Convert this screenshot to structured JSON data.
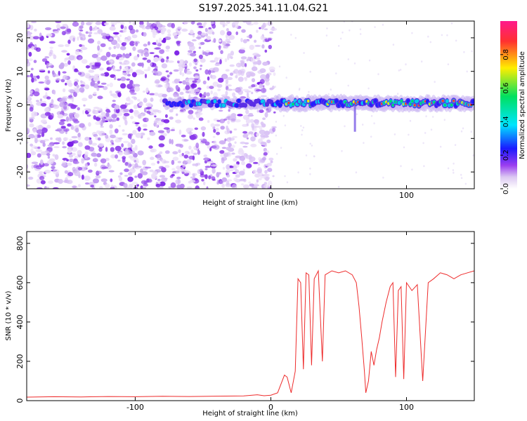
{
  "figure_title": "S197.2025.341.11.04.G21",
  "chart_data": [
    {
      "type": "heatmap",
      "title": "",
      "xlabel": "Height of straight line (km)",
      "ylabel": "Frequency (Hz)",
      "xlim": [
        -180,
        150
      ],
      "ylim": [
        -25,
        25
      ],
      "xticks": [
        -100,
        0,
        100
      ],
      "yticks": [
        -20,
        -10,
        0,
        10,
        20
      ],
      "colorbar": {
        "label": "Normalized spectral amplitude",
        "range": [
          0,
          1
        ],
        "ticks": [
          0.0,
          0.2,
          0.4,
          0.6,
          0.8
        ],
        "colors": [
          "#ffffff",
          "#dcc8f2",
          "#9a3df0",
          "#1a1aff",
          "#00e5ff",
          "#00e060",
          "#ffee00",
          "#ff3030",
          "#ff1a8c"
        ]
      },
      "features": {
        "noise_region_x": [
          -180,
          3
        ],
        "signal_band_start_x": -78,
        "signal_band_freq_hz": 0.5,
        "strong_signal_start_x": 3
      }
    },
    {
      "type": "line",
      "title": "",
      "xlabel": "Height of straight line (km)",
      "ylabel": "SNR (10 * v/v)",
      "xlim": [
        -180,
        150
      ],
      "ylim": [
        0,
        860
      ],
      "xticks": [
        -100,
        0,
        100
      ],
      "yticks": [
        0,
        200,
        400,
        600,
        800
      ],
      "color": "#ee2b2b",
      "series": [
        {
          "x": [
            -180,
            -160,
            -140,
            -120,
            -100,
            -80,
            -60,
            -40,
            -20,
            -10,
            -5,
            0,
            5,
            10,
            12,
            15,
            18,
            20,
            22,
            24,
            26,
            28,
            30,
            32,
            35,
            38,
            40,
            45,
            50,
            55,
            60,
            63,
            65,
            67,
            69,
            70,
            72,
            74,
            76,
            78,
            80,
            82,
            85,
            88,
            90,
            92,
            94,
            96,
            98,
            100,
            104,
            108,
            112,
            116,
            120,
            125,
            130,
            135,
            140,
            145,
            150
          ],
          "y": [
            18,
            20,
            19,
            21,
            20,
            22,
            21,
            23,
            24,
            30,
            25,
            28,
            40,
            130,
            120,
            40,
            150,
            620,
            600,
            160,
            650,
            640,
            180,
            620,
            660,
            200,
            640,
            660,
            650,
            660,
            640,
            600,
            480,
            320,
            150,
            40,
            100,
            250,
            180,
            260,
            320,
            400,
            500,
            580,
            600,
            120,
            560,
            580,
            110,
            600,
            560,
            590,
            100,
            600,
            620,
            650,
            640,
            620,
            640,
            650,
            660
          ]
        }
      ]
    }
  ]
}
